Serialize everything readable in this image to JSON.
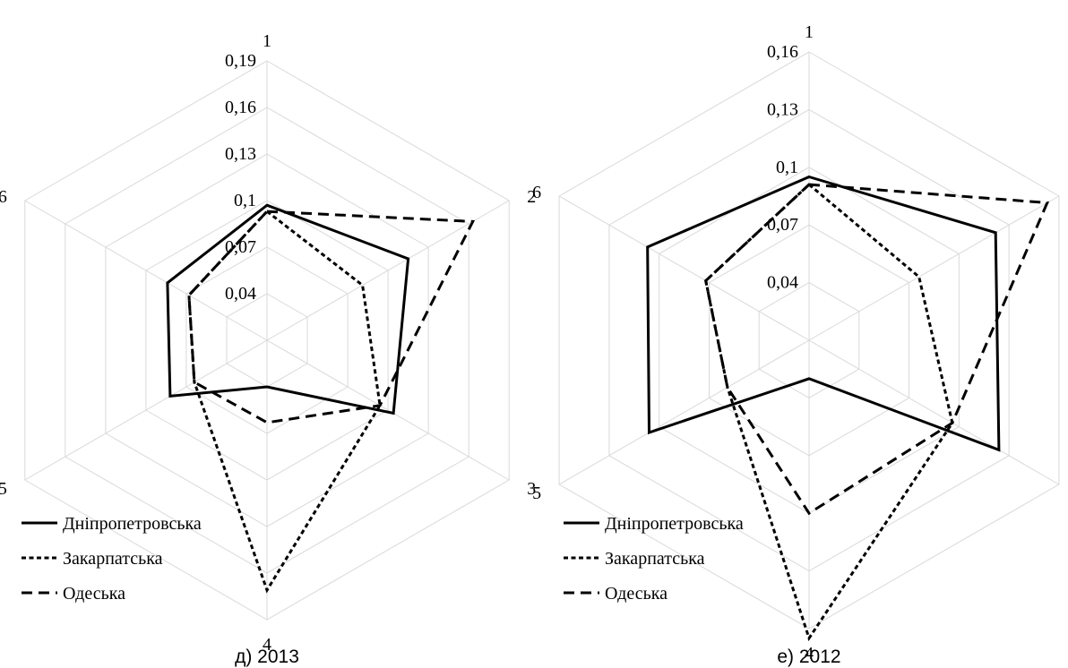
{
  "chart_data": [
    {
      "type": "radar",
      "caption": "д) 2013",
      "axes": [
        "1",
        "2",
        "3",
        "4",
        "5",
        "6"
      ],
      "rlim": [
        0.01,
        0.19
      ],
      "tick_labels": [
        "0,04",
        "0,07",
        "0,1",
        "0,13",
        "0,16",
        "0,19"
      ],
      "tick_values": [
        0.04,
        0.07,
        0.1,
        0.13,
        0.16,
        0.19
      ],
      "grid": true,
      "legend_position": "bottom-left",
      "series": [
        {
          "name": "Дніпропетровська",
          "style": "solid",
          "values": [
            0.097,
            0.115,
            0.104,
            0.04,
            0.082,
            0.084
          ]
        },
        {
          "name": "Закарпатська",
          "style": "dotted",
          "values": [
            0.093,
            0.081,
            0.094,
            0.171,
            0.064,
            0.068
          ]
        },
        {
          "name": "Одеська",
          "style": "dashed",
          "values": [
            0.093,
            0.163,
            0.094,
            0.063,
            0.064,
            0.068
          ]
        }
      ]
    },
    {
      "type": "radar",
      "caption": "е) 2012",
      "axes": [
        "1",
        "2",
        "3",
        "4",
        "5",
        "6"
      ],
      "rlim": [
        0.01,
        0.16
      ],
      "tick_labels": [
        "0,04",
        "0,07",
        "0,1",
        "0,13",
        "0,16"
      ],
      "tick_values": [
        0.04,
        0.07,
        0.1,
        0.13,
        0.16
      ],
      "grid": true,
      "legend_position": "bottom-left",
      "series": [
        {
          "name": "Дніпропетровська",
          "style": "solid",
          "values": [
            0.095,
            0.122,
            0.124,
            0.03,
            0.106,
            0.107
          ]
        },
        {
          "name": "Закарпатська",
          "style": "dotted",
          "values": [
            0.091,
            0.076,
            0.096,
            0.165,
            0.059,
            0.072
          ]
        },
        {
          "name": "Одеська",
          "style": "dashed",
          "values": [
            0.091,
            0.153,
            0.096,
            0.1,
            0.059,
            0.072
          ]
        }
      ]
    }
  ]
}
